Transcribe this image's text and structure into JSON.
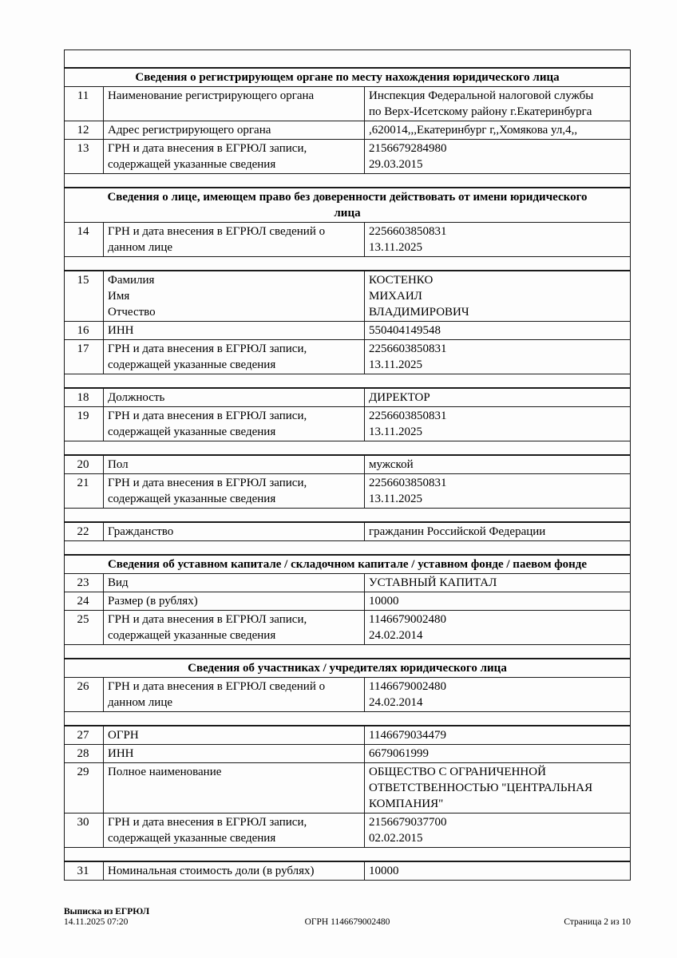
{
  "table": {
    "rows": [
      {
        "type": "spacer"
      },
      {
        "type": "header",
        "title": "Сведения о регистрирующем органе по месту нахождения юридического лица"
      },
      {
        "type": "data",
        "num": "11",
        "label": "Наименование регистрирующего органа",
        "value": "Инспекция Федеральной налоговой службы\nпо Верх-Исетскому району г.Екатеринбурга"
      },
      {
        "type": "data",
        "num": "12",
        "label": "Адрес регистрирующего органа",
        "value": ",620014,,,Екатеринбург г,,Хомякова ул,4,,"
      },
      {
        "type": "data",
        "num": "13",
        "label": "ГРН и дата внесения в ЕГРЮЛ записи,\nсодержащей указанные сведения",
        "value": "2156679284980\n29.03.2015"
      },
      {
        "type": "spacer"
      },
      {
        "type": "header",
        "title": "Сведения о лице, имеющем право без доверенности действовать от имени юридического\nлица"
      },
      {
        "type": "data",
        "num": "14",
        "label": "ГРН и дата внесения в ЕГРЮЛ сведений о\nданном лице",
        "value": "2256603850831\n13.11.2025"
      },
      {
        "type": "spacer"
      },
      {
        "type": "data",
        "num": "15",
        "label": "Фамилия\nИмя\nОтчество",
        "value": "КОСТЕНКО\nМИХАИЛ\nВЛАДИМИРОВИЧ"
      },
      {
        "type": "data",
        "num": "16",
        "label": "ИНН",
        "value": "550404149548"
      },
      {
        "type": "data",
        "num": "17",
        "label": "ГРН и дата внесения в ЕГРЮЛ записи,\nсодержащей указанные сведения",
        "value": "2256603850831\n13.11.2025"
      },
      {
        "type": "spacer"
      },
      {
        "type": "data",
        "num": "18",
        "label": "Должность",
        "value": "ДИРЕКТОР"
      },
      {
        "type": "data",
        "num": "19",
        "label": "ГРН и дата внесения в ЕГРЮЛ записи,\nсодержащей указанные сведения",
        "value": "2256603850831\n13.11.2025"
      },
      {
        "type": "spacer"
      },
      {
        "type": "data",
        "num": "20",
        "label": "Пол",
        "value": "мужской"
      },
      {
        "type": "data",
        "num": "21",
        "label": "ГРН и дата внесения в ЕГРЮЛ записи,\nсодержащей указанные сведения",
        "value": "2256603850831\n13.11.2025"
      },
      {
        "type": "spacer"
      },
      {
        "type": "data",
        "num": "22",
        "label": "Гражданство",
        "value": "гражданин Российской Федерации"
      },
      {
        "type": "spacer"
      },
      {
        "type": "header",
        "title": "Сведения об уставном капитале / складочном капитале / уставном фонде / паевом фонде"
      },
      {
        "type": "data",
        "num": "23",
        "label": "Вид",
        "value": "УСТАВНЫЙ КАПИТАЛ"
      },
      {
        "type": "data",
        "num": "24",
        "label": "Размер (в рублях)",
        "value": "10000"
      },
      {
        "type": "data",
        "num": "25",
        "label": "ГРН и дата внесения в ЕГРЮЛ записи,\nсодержащей указанные сведения",
        "value": "1146679002480\n24.02.2014"
      },
      {
        "type": "spacer"
      },
      {
        "type": "header",
        "title": "Сведения об участниках / учредителях юридического лица"
      },
      {
        "type": "data",
        "num": "26",
        "label": "ГРН и дата внесения в ЕГРЮЛ сведений о\nданном лице",
        "value": "1146679002480\n24.02.2014"
      },
      {
        "type": "spacer"
      },
      {
        "type": "data",
        "num": "27",
        "label": "ОГРН",
        "value": "1146679034479"
      },
      {
        "type": "data",
        "num": "28",
        "label": "ИНН",
        "value": "6679061999"
      },
      {
        "type": "data",
        "num": "29",
        "label": "Полное наименование",
        "value": "ОБЩЕСТВО С ОГРАНИЧЕННОЙ\nОТВЕТСТВЕННОСТЬЮ \"ЦЕНТРАЛЬНАЯ\nКОМПАНИЯ\""
      },
      {
        "type": "data",
        "num": "30",
        "label": "ГРН и дата внесения в ЕГРЮЛ записи,\nсодержащей указанные сведения",
        "value": "2156679037700\n02.02.2015"
      },
      {
        "type": "spacer"
      },
      {
        "type": "data",
        "num": "31",
        "label": "Номинальная стоимость доли (в рублях)",
        "value": "10000"
      }
    ]
  },
  "footer": {
    "doc_type": "Выписка из ЕГРЮЛ",
    "generated_at": "14.11.2025 07:20",
    "ogrn": "ОГРН 1146679002480",
    "page": "Страница 2 из 10"
  }
}
